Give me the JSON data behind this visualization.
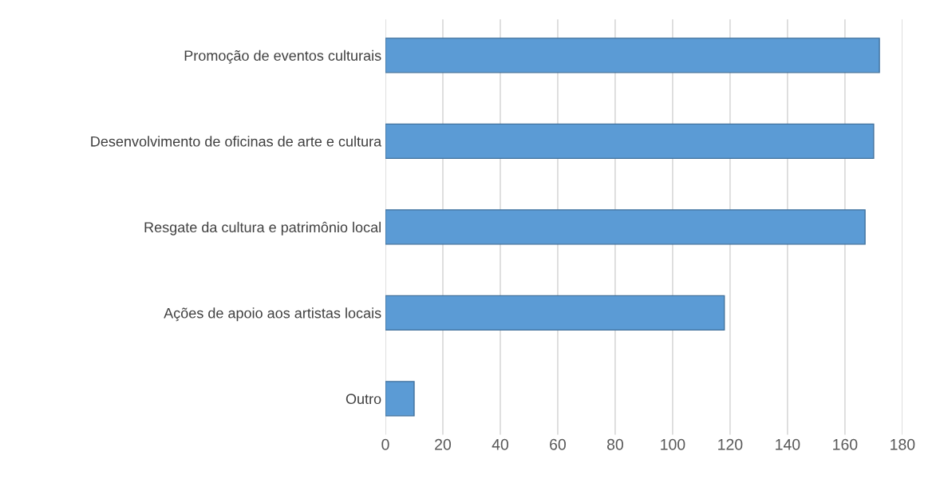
{
  "chart_data": {
    "type": "bar",
    "orientation": "horizontal",
    "categories": [
      "Promoção de eventos culturais",
      "Desenvolvimento de oficinas de arte e cultura",
      "Resgate da cultura e patrimônio local",
      "Ações de apoio aos artistas locais",
      "Outro"
    ],
    "values": [
      172,
      170,
      167,
      118,
      10
    ],
    "color": "#5b9bd5",
    "xlim": [
      0,
      180
    ],
    "xticks": [
      0,
      20,
      40,
      60,
      80,
      100,
      120,
      140,
      160,
      180
    ],
    "grid": "x"
  }
}
